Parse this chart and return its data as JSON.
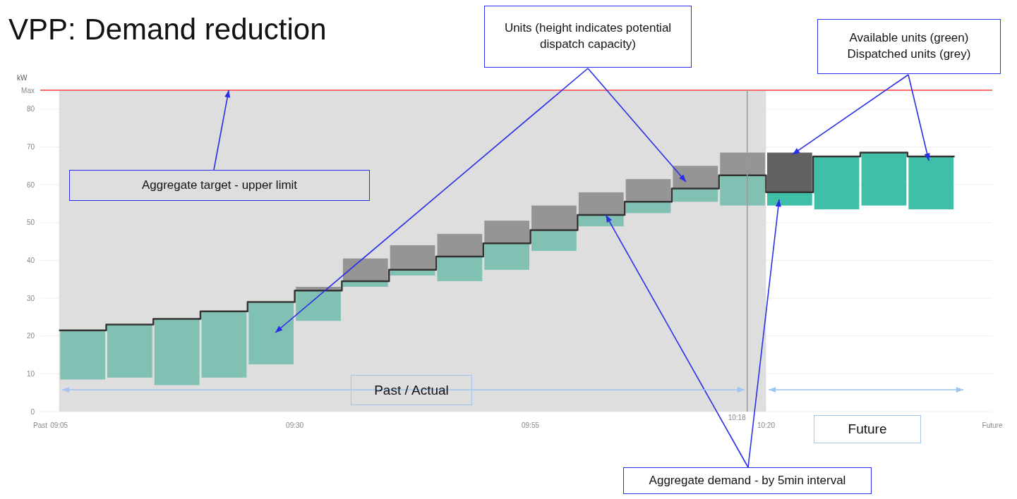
{
  "chart_data": {
    "type": "bar",
    "title": "VPP: Demand reduction",
    "ylabel": "kW",
    "x": [
      9.125,
      9.2083,
      9.2917,
      9.375,
      9.4583,
      9.5417,
      9.625,
      9.7083,
      9.7917,
      9.875,
      9.9583,
      10.0417,
      10.125,
      10.2083,
      10.2917,
      10.375,
      10.4583,
      10.5417,
      10.625
    ],
    "series": [
      {
        "base": [
          8.5,
          9,
          7,
          9,
          12.5,
          24,
          33,
          36,
          34.5,
          37.5,
          42.5,
          49,
          52.5,
          55.5,
          54.5,
          54.5,
          53.5,
          54.5,
          53.5
        ],
        "colors": [
          "#80c1b4",
          "#80c1b4",
          "#80c1b4",
          "#80c1b4",
          "#80c1b4",
          "#80c1b4",
          "#80c1b4",
          "#80c1b4",
          "#80c1b4",
          "#80c1b4",
          "#80c1b4",
          "#80c1b4",
          "#80c1b4",
          "#80c1b4",
          "#80c1b4",
          "#40bfa8",
          "#40bfa8",
          "#40bfa8",
          "#40bfa8"
        ],
        "values": [
          13,
          14,
          17.5,
          17.5,
          16.5,
          8,
          1.5,
          1.5,
          6.5,
          7,
          5.5,
          3,
          3,
          3.5,
          8,
          3.5,
          14,
          14,
          14
        ]
      },
      {
        "base": [
          null,
          null,
          null,
          null,
          null,
          32,
          34.5,
          37.5,
          41,
          44.5,
          48,
          52,
          55.5,
          59,
          62.5,
          58,
          null,
          null,
          null
        ],
        "colors": [
          null,
          null,
          null,
          null,
          null,
          "#959595",
          "#959595",
          "#959595",
          "#959595",
          "#959595",
          "#959595",
          "#959595",
          "#959595",
          "#959595",
          "#959595",
          "#616161",
          null,
          null,
          null
        ],
        "values": [
          null,
          null,
          null,
          null,
          null,
          1,
          6,
          6.5,
          6,
          6,
          6.5,
          6,
          6,
          6,
          6,
          10.5,
          null,
          null,
          null
        ]
      },
      {
        "type": "step",
        "color": "#333333",
        "x": [
          9.0833,
          9.1667,
          9.25,
          9.3333,
          9.4167,
          9.5,
          9.5833,
          9.6667,
          9.75,
          9.8333,
          9.9167,
          10.0,
          10.0833,
          10.1667,
          10.25,
          10.3333,
          10.4167,
          10.5,
          10.5833,
          10.6667
        ],
        "values": [
          21.5,
          23,
          24.5,
          26.5,
          29,
          32,
          34.5,
          37.5,
          41,
          44.5,
          48,
          52,
          55.5,
          59,
          62.5,
          58,
          67.5,
          68.5,
          67.5,
          67.5
        ]
      }
    ],
    "xlim": [
      9.05,
      10.7333
    ],
    "xticks": [
      {
        "value": 9.05,
        "label": "Past"
      },
      {
        "value": 9.0833,
        "label": "09:05"
      },
      {
        "value": 9.5,
        "label": "09:30"
      },
      {
        "value": 9.9167,
        "label": "09:55"
      },
      {
        "value": 10.3333,
        "label": "10:20"
      },
      {
        "value": 10.7333,
        "label": "Future"
      }
    ],
    "ylim": [
      0,
      85
    ],
    "yticks": [
      0,
      10,
      20,
      30,
      40,
      50,
      60,
      70,
      80,
      {
        "value": 85,
        "label": "Max"
      }
    ],
    "grid": "y",
    "ref_lines": [
      {
        "axis": "y",
        "value": 85,
        "color": "#ff6b6b"
      },
      {
        "axis": "x",
        "value": 10.3,
        "label": "10:18",
        "color": "#9a9a9a"
      }
    ],
    "bands": [
      {
        "axis": "x",
        "from": 9.0833,
        "to": 10.3333,
        "color": "#dedede"
      }
    ],
    "annotations": [
      "Units (height indicates potential dispatch capacity)",
      {
        "text": "Available units (green) Dispatched units (grey)",
        "x": 10.38,
        "y": 68
      },
      {
        "text": "Aggregate target - upper limit",
        "x": 9.3833,
        "y": 85
      },
      {
        "text": "Aggregate demand - by 5min interval",
        "x": 10.05,
        "y": 52
      },
      "Past / Actual",
      "Future"
    ]
  }
}
